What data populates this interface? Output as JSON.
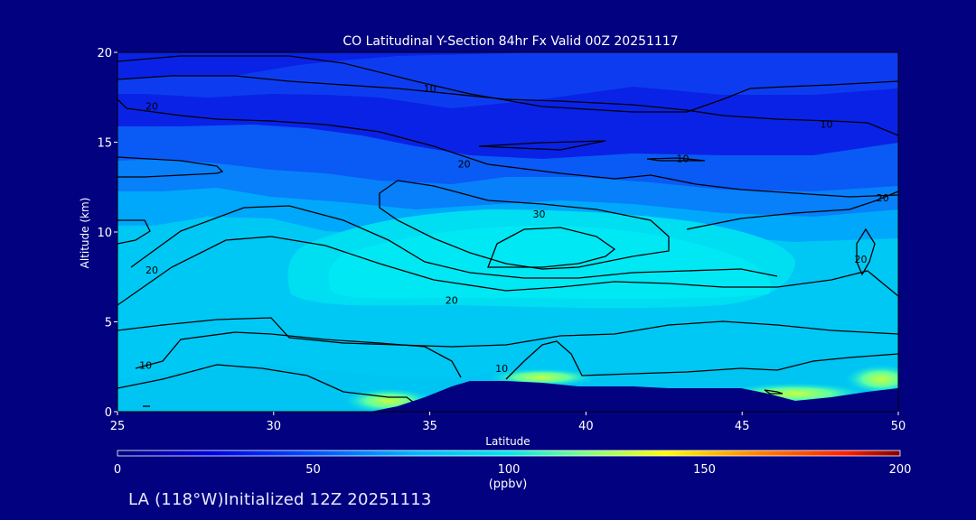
{
  "chart_data": {
    "type": "heatmap",
    "title": "CO Latitudinal Y-Section 84hr  Fx Valid 00Z 20251117",
    "xlabel": "Latitude",
    "ylabel": "Altitude (km)",
    "xlim": [
      25,
      50
    ],
    "ylim": [
      0,
      20
    ],
    "x_ticks": [
      "25",
      "30",
      "35",
      "40",
      "45",
      "50"
    ],
    "y_ticks": [
      "0",
      "5",
      "10",
      "15",
      "20"
    ],
    "colorbar": {
      "label": "(ppbv)",
      "range": [
        0,
        200
      ],
      "ticks": [
        "0",
        "50",
        "100",
        "150",
        "200"
      ]
    },
    "contour_levels": [
      10,
      20,
      30
    ],
    "contour_labels": [
      {
        "text": "10",
        "lat": 35.0,
        "alt": 18.0
      },
      {
        "text": "10",
        "lat": 47.7,
        "alt": 16.0
      },
      {
        "text": "10",
        "lat": 43.1,
        "alt": 14.1
      },
      {
        "text": "10",
        "lat": 25.9,
        "alt": 2.6
      },
      {
        "text": "10",
        "lat": 37.3,
        "alt": 2.4
      },
      {
        "text": "20",
        "lat": 26.1,
        "alt": 17.0
      },
      {
        "text": "20",
        "lat": 36.1,
        "alt": 13.8
      },
      {
        "text": "20",
        "lat": 49.5,
        "alt": 11.9
      },
      {
        "text": "20",
        "lat": 26.1,
        "alt": 7.9
      },
      {
        "text": "20",
        "lat": 35.7,
        "alt": 6.2
      },
      {
        "text": "20",
        "lat": 48.8,
        "alt": 8.5
      },
      {
        "text": "30",
        "lat": 38.5,
        "alt": 11.0
      }
    ]
  },
  "footer": "LA (118°W)Initialized 12Z 20251113"
}
